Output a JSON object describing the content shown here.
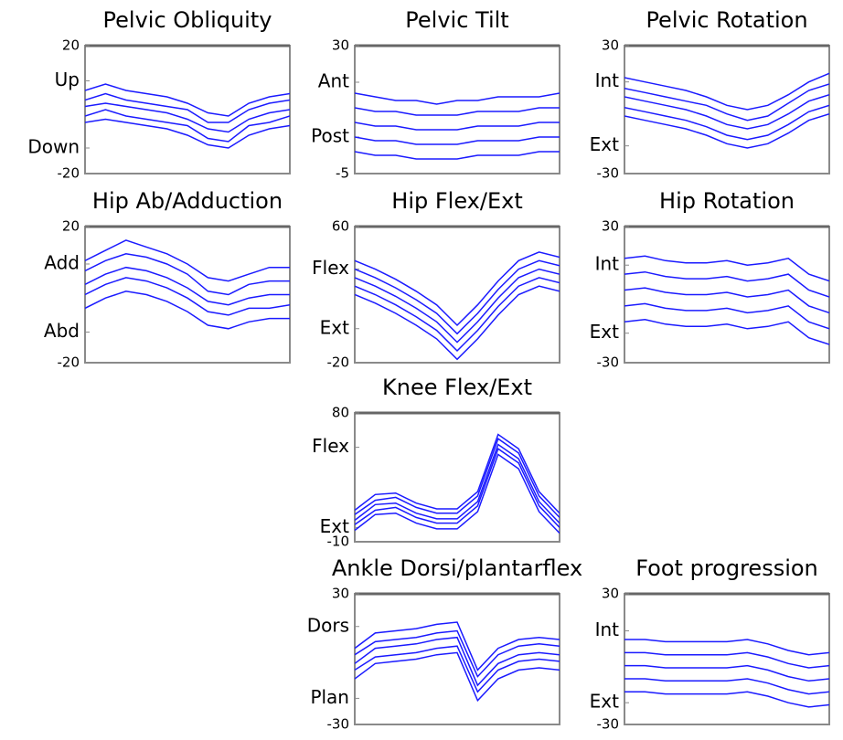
{
  "chart_data": [
    {
      "type": "line",
      "title": "Pelvic Obliquity",
      "ylim": [
        -20,
        20
      ],
      "yticks": [
        20,
        {
          "value": 9,
          "label": "Up"
        },
        {
          "value": -12,
          "label": "Down"
        },
        -20
      ],
      "series": [
        {
          "color": "#1a1aff",
          "values": [
            -4,
            -3,
            -4,
            -5,
            -6,
            -8,
            -11,
            -12,
            -8,
            -6,
            -5
          ]
        },
        {
          "color": "#1a1aff",
          "values": [
            -2,
            0,
            -2,
            -3,
            -4,
            -5,
            -9,
            -10,
            -5,
            -4,
            -2
          ]
        },
        {
          "color": "#1a1aff",
          "values": [
            1,
            2,
            1,
            0,
            -1,
            -3,
            -6,
            -7,
            -3,
            -1,
            0
          ]
        },
        {
          "color": "#1a1aff",
          "values": [
            3,
            5,
            3,
            2,
            1,
            0,
            -4,
            -4,
            0,
            2,
            3
          ]
        },
        {
          "color": "#1a1aff",
          "values": [
            6,
            8,
            6,
            5,
            4,
            2,
            -1,
            -2,
            2,
            4,
            5
          ]
        }
      ]
    },
    {
      "type": "line",
      "title": "Pelvic Tilt",
      "ylim": [
        -5,
        30
      ],
      "yticks": [
        30,
        {
          "value": 20,
          "label": "Ant"
        },
        {
          "value": 5,
          "label": "Post"
        },
        -5
      ],
      "series": [
        {
          "color": "#1a1aff",
          "values": [
            1,
            0,
            0,
            -1,
            -1,
            -1,
            0,
            0,
            0,
            1,
            1
          ]
        },
        {
          "color": "#1a1aff",
          "values": [
            5,
            4,
            4,
            3,
            3,
            3,
            4,
            4,
            4,
            5,
            5
          ]
        },
        {
          "color": "#1a1aff",
          "values": [
            9,
            8,
            8,
            7,
            7,
            7,
            8,
            8,
            8,
            9,
            9
          ]
        },
        {
          "color": "#1a1aff",
          "values": [
            13,
            12,
            12,
            11,
            11,
            11,
            12,
            12,
            12,
            13,
            13
          ]
        },
        {
          "color": "#1a1aff",
          "values": [
            17,
            16,
            15,
            15,
            14,
            15,
            15,
            16,
            16,
            16,
            17
          ]
        }
      ]
    },
    {
      "type": "line",
      "title": "Pelvic Rotation",
      "ylim": [
        -30,
        30
      ],
      "yticks": [
        30,
        {
          "value": 13,
          "label": "Int"
        },
        {
          "value": -17,
          "label": "Ext"
        },
        -30
      ],
      "series": [
        {
          "color": "#1a1aff",
          "values": [
            -3,
            -5,
            -7,
            -9,
            -12,
            -16,
            -18,
            -16,
            -11,
            -5,
            -2
          ]
        },
        {
          "color": "#1a1aff",
          "values": [
            1,
            -1,
            -3,
            -5,
            -8,
            -12,
            -14,
            -12,
            -7,
            -1,
            2
          ]
        },
        {
          "color": "#1a1aff",
          "values": [
            6,
            4,
            2,
            0,
            -3,
            -7,
            -9,
            -7,
            -2,
            4,
            7
          ]
        },
        {
          "color": "#1a1aff",
          "values": [
            10,
            8,
            6,
            4,
            2,
            -2,
            -5,
            -3,
            3,
            9,
            12
          ]
        },
        {
          "color": "#1a1aff",
          "values": [
            15,
            13,
            11,
            9,
            6,
            2,
            0,
            2,
            7,
            13,
            17
          ]
        }
      ]
    },
    {
      "type": "line",
      "title": "Hip Ab/Adduction",
      "ylim": [
        -20,
        20
      ],
      "yticks": [
        20,
        {
          "value": 9,
          "label": "Add"
        },
        {
          "value": -11,
          "label": "Abd"
        },
        -20
      ],
      "series": [
        {
          "color": "#1a1aff",
          "values": [
            -4,
            -1,
            1,
            0,
            -2,
            -5,
            -9,
            -10,
            -8,
            -7,
            -7
          ]
        },
        {
          "color": "#1a1aff",
          "values": [
            0,
            3,
            5,
            4,
            2,
            -1,
            -5,
            -6,
            -4,
            -4,
            -3
          ]
        },
        {
          "color": "#1a1aff",
          "values": [
            3,
            6,
            8,
            7,
            5,
            2,
            -2,
            -3,
            -1,
            0,
            0
          ]
        },
        {
          "color": "#1a1aff",
          "values": [
            7,
            10,
            12,
            11,
            9,
            6,
            1,
            0,
            3,
            4,
            4
          ]
        },
        {
          "color": "#1a1aff",
          "values": [
            10,
            13,
            16,
            14,
            12,
            9,
            5,
            4,
            6,
            8,
            8
          ]
        }
      ]
    },
    {
      "type": "line",
      "title": "Hip Flex/Ext",
      "ylim": [
        -20,
        60
      ],
      "yticks": [
        60,
        {
          "value": 35,
          "label": "Flex"
        },
        {
          "value": 0,
          "label": "Ext"
        },
        -20
      ],
      "series": [
        {
          "color": "#1a1aff",
          "values": [
            20,
            15,
            9,
            2,
            -6,
            -18,
            -6,
            8,
            20,
            25,
            22
          ]
        },
        {
          "color": "#1a1aff",
          "values": [
            25,
            20,
            14,
            7,
            -1,
            -13,
            -1,
            13,
            25,
            30,
            27
          ]
        },
        {
          "color": "#1a1aff",
          "values": [
            30,
            25,
            19,
            12,
            4,
            -8,
            4,
            18,
            30,
            35,
            32
          ]
        },
        {
          "color": "#1a1aff",
          "values": [
            35,
            30,
            24,
            17,
            9,
            -3,
            9,
            23,
            35,
            40,
            37
          ]
        },
        {
          "color": "#1a1aff",
          "values": [
            40,
            35,
            29,
            22,
            14,
            2,
            14,
            28,
            40,
            45,
            42
          ]
        }
      ]
    },
    {
      "type": "line",
      "title": "Hip Rotation",
      "ylim": [
        -30,
        30
      ],
      "yticks": [
        30,
        {
          "value": 13,
          "label": "Int"
        },
        {
          "value": -17,
          "label": "Ext"
        },
        -30
      ],
      "series": [
        {
          "color": "#1a1aff",
          "values": [
            -12,
            -11,
            -13,
            -14,
            -14,
            -13,
            -15,
            -14,
            -12,
            -19,
            -22
          ]
        },
        {
          "color": "#1a1aff",
          "values": [
            -5,
            -4,
            -6,
            -7,
            -7,
            -6,
            -8,
            -7,
            -5,
            -12,
            -15
          ]
        },
        {
          "color": "#1a1aff",
          "values": [
            2,
            3,
            1,
            0,
            0,
            1,
            -1,
            0,
            2,
            -5,
            -8
          ]
        },
        {
          "color": "#1a1aff",
          "values": [
            9,
            10,
            8,
            7,
            7,
            8,
            6,
            7,
            9,
            2,
            -1
          ]
        },
        {
          "color": "#1a1aff",
          "values": [
            16,
            17,
            15,
            14,
            14,
            15,
            13,
            14,
            16,
            9,
            6
          ]
        }
      ]
    },
    {
      "type": "line",
      "title": "Knee Flex/Ext",
      "ylim": [
        -10,
        80
      ],
      "yticks": [
        80,
        {
          "value": 56,
          "label": "Flex"
        },
        {
          "value": 0,
          "label": "Ext"
        },
        -10
      ],
      "series": [
        {
          "color": "#1a1aff",
          "values": [
            -2,
            9,
            10,
            3,
            -1,
            -1,
            11,
            51,
            41,
            11,
            -4
          ]
        },
        {
          "color": "#1a1aff",
          "values": [
            2,
            12,
            14,
            7,
            3,
            3,
            15,
            55,
            45,
            15,
            0
          ]
        },
        {
          "color": "#1a1aff",
          "values": [
            5,
            16,
            17,
            10,
            6,
            6,
            18,
            58,
            48,
            18,
            3
          ]
        },
        {
          "color": "#1a1aff",
          "values": [
            9,
            19,
            21,
            14,
            10,
            10,
            22,
            62,
            52,
            22,
            7
          ]
        },
        {
          "color": "#1a1aff",
          "values": [
            12,
            23,
            24,
            17,
            13,
            13,
            25,
            65,
            55,
            25,
            10
          ]
        }
      ]
    },
    {
      "type": "line",
      "title": "Ankle Dorsi/plantarflex",
      "ylim": [
        -30,
        30
      ],
      "yticks": [
        30,
        {
          "value": 15,
          "label": "Dors"
        },
        {
          "value": -18,
          "label": "Plan"
        },
        -30
      ],
      "series": [
        {
          "color": "#1a1aff",
          "values": [
            -9,
            -2,
            -1,
            0,
            2,
            3,
            -19,
            -9,
            -5,
            -4,
            -5
          ]
        },
        {
          "color": "#1a1aff",
          "values": [
            -5,
            1,
            2,
            3,
            5,
            6,
            -15,
            -5,
            -1,
            0,
            -1
          ]
        },
        {
          "color": "#1a1aff",
          "values": [
            -2,
            5,
            6,
            7,
            9,
            10,
            -12,
            -2,
            2,
            3,
            2
          ]
        },
        {
          "color": "#1a1aff",
          "values": [
            2,
            8,
            9,
            10,
            12,
            13,
            -8,
            2,
            6,
            7,
            6
          ]
        },
        {
          "color": "#1a1aff",
          "values": [
            5,
            12,
            13,
            14,
            16,
            17,
            -5,
            5,
            9,
            10,
            9
          ]
        }
      ]
    },
    {
      "type": "line",
      "title": "Foot progression",
      "ylim": [
        -30,
        30
      ],
      "yticks": [
        30,
        {
          "value": 13,
          "label": "Int"
        },
        {
          "value": -20,
          "label": "Ext"
        },
        -30
      ],
      "series": [
        {
          "color": "#1a1aff",
          "values": [
            -15,
            -15,
            -16,
            -16,
            -16,
            -16,
            -15,
            -17,
            -20,
            -22,
            -21
          ]
        },
        {
          "color": "#1a1aff",
          "values": [
            -9,
            -9,
            -10,
            -10,
            -10,
            -10,
            -9,
            -11,
            -14,
            -16,
            -15
          ]
        },
        {
          "color": "#1a1aff",
          "values": [
            -3,
            -3,
            -4,
            -4,
            -4,
            -4,
            -3,
            -5,
            -8,
            -10,
            -9
          ]
        },
        {
          "color": "#1a1aff",
          "values": [
            3,
            3,
            2,
            2,
            2,
            2,
            3,
            1,
            -2,
            -4,
            -3
          ]
        },
        {
          "color": "#1a1aff",
          "values": [
            9,
            9,
            8,
            8,
            8,
            8,
            9,
            7,
            4,
            2,
            3
          ]
        }
      ]
    }
  ]
}
